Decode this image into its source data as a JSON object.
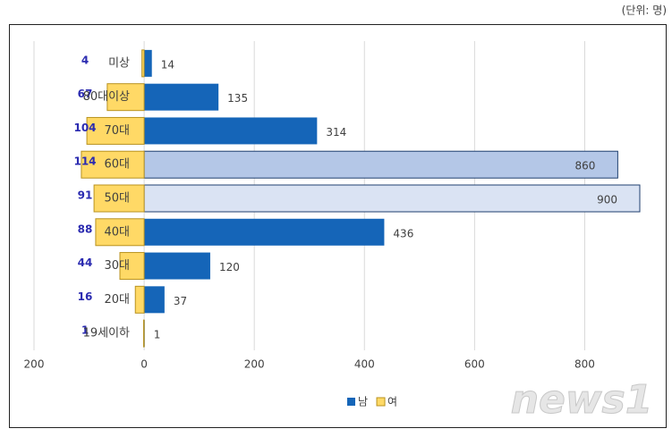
{
  "unit_note": "(단위: 명)",
  "watermark": "news1",
  "chart_data": {
    "type": "butterfly-bar",
    "categories": [
      "미상",
      "80대이상",
      "70대",
      "60대",
      "50대",
      "40대",
      "30대",
      "20대",
      "19세이하"
    ],
    "series": [
      {
        "name": "남",
        "color": "#1565b8",
        "side": "right",
        "colors": [
          "#1565b8",
          "#1565b8",
          "#1565b8",
          "#b4c7e7",
          "#dae3f3",
          "#1565b8",
          "#1565b8",
          "#1565b8",
          "#1565b8"
        ],
        "values": [
          14,
          135,
          314,
          860,
          900,
          436,
          120,
          37,
          1
        ]
      },
      {
        "name": "여",
        "color": "#ffd966",
        "side": "left",
        "values": [
          4,
          67,
          104,
          114,
          91,
          88,
          44,
          16,
          1
        ]
      }
    ],
    "xlim": [
      -200,
      900
    ],
    "xticks": [
      {
        "value": -200,
        "label": "200"
      },
      0,
      200,
      400,
      600,
      800
    ],
    "grid": true,
    "legend": "bottom"
  }
}
